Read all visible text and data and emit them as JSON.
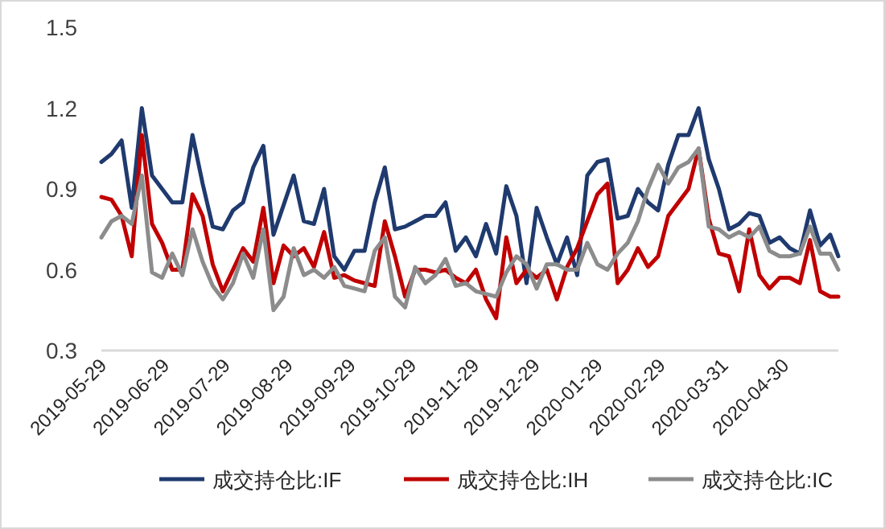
{
  "chart_data": {
    "type": "line",
    "legend": "bottom",
    "line_style": "solid",
    "x": [
      "2019-05-29",
      "2019-06-03",
      "2019-06-08",
      "2019-06-13",
      "2019-06-18",
      "2019-06-23",
      "2019-06-28",
      "2019-07-03",
      "2019-07-08",
      "2019-07-13",
      "2019-07-18",
      "2019-07-23",
      "2019-07-28",
      "2019-08-02",
      "2019-08-07",
      "2019-08-12",
      "2019-08-17",
      "2019-08-22",
      "2019-08-27",
      "2019-09-01",
      "2019-09-06",
      "2019-09-11",
      "2019-09-16",
      "2019-09-21",
      "2019-09-26",
      "2019-10-01",
      "2019-10-06",
      "2019-10-11",
      "2019-10-16",
      "2019-10-21",
      "2019-10-26",
      "2019-10-31",
      "2019-11-05",
      "2019-11-10",
      "2019-11-15",
      "2019-11-20",
      "2019-11-25",
      "2019-11-30",
      "2019-12-05",
      "2019-12-10",
      "2019-12-15",
      "2019-12-20",
      "2019-12-25",
      "2019-12-30",
      "2020-01-04",
      "2020-01-09",
      "2020-01-14",
      "2020-01-19",
      "2020-01-24",
      "2020-01-29",
      "2020-02-03",
      "2020-02-08",
      "2020-02-13",
      "2020-02-18",
      "2020-02-23",
      "2020-02-28",
      "2020-03-04",
      "2020-03-09",
      "2020-03-14",
      "2020-03-19",
      "2020-03-24",
      "2020-03-29",
      "2020-04-03",
      "2020-04-08",
      "2020-04-13",
      "2020-04-18",
      "2020-04-23",
      "2020-04-28",
      "2020-05-03",
      "2020-05-08",
      "2020-05-13",
      "2020-05-18",
      "2020-05-23",
      "2020-05-27"
    ],
    "series": [
      {
        "name": "成交持仓比:IF",
        "color": "#1f3a6e",
        "values": [
          1.0,
          1.03,
          1.08,
          0.83,
          1.2,
          0.95,
          0.9,
          0.85,
          0.85,
          1.1,
          0.92,
          0.76,
          0.75,
          0.82,
          0.85,
          0.98,
          1.06,
          0.73,
          0.84,
          0.95,
          0.78,
          0.77,
          0.9,
          0.65,
          0.6,
          0.67,
          0.67,
          0.85,
          0.98,
          0.75,
          0.76,
          0.78,
          0.8,
          0.8,
          0.85,
          0.67,
          0.72,
          0.65,
          0.77,
          0.66,
          0.91,
          0.8,
          0.55,
          0.83,
          0.72,
          0.62,
          0.72,
          0.58,
          0.95,
          1.0,
          1.01,
          0.79,
          0.8,
          0.9,
          0.85,
          0.82,
          0.99,
          1.1,
          1.1,
          1.2,
          1.01,
          0.9,
          0.75,
          0.77,
          0.81,
          0.8,
          0.7,
          0.72,
          0.68,
          0.66,
          0.82,
          0.69,
          0.73,
          0.65
        ]
      },
      {
        "name": "成交持仓比:IH",
        "color": "#c00000",
        "values": [
          0.87,
          0.86,
          0.8,
          0.65,
          1.1,
          0.77,
          0.7,
          0.6,
          0.6,
          0.88,
          0.8,
          0.62,
          0.52,
          0.6,
          0.68,
          0.63,
          0.83,
          0.55,
          0.69,
          0.65,
          0.68,
          0.61,
          0.74,
          0.57,
          0.58,
          0.56,
          0.55,
          0.54,
          0.78,
          0.65,
          0.5,
          0.6,
          0.6,
          0.59,
          0.6,
          0.57,
          0.55,
          0.6,
          0.49,
          0.42,
          0.72,
          0.55,
          0.6,
          0.57,
          0.6,
          0.49,
          0.61,
          0.68,
          0.78,
          0.88,
          0.92,
          0.55,
          0.6,
          0.68,
          0.61,
          0.65,
          0.8,
          0.85,
          0.9,
          1.05,
          0.79,
          0.66,
          0.65,
          0.52,
          0.75,
          0.58,
          0.53,
          0.57,
          0.57,
          0.55,
          0.71,
          0.52,
          0.5,
          0.5
        ]
      },
      {
        "name": "成交持仓比:IC",
        "color": "#8c8c8c",
        "values": [
          0.72,
          0.78,
          0.8,
          0.77,
          0.95,
          0.59,
          0.57,
          0.66,
          0.58,
          0.75,
          0.63,
          0.54,
          0.49,
          0.55,
          0.66,
          0.57,
          0.75,
          0.45,
          0.5,
          0.68,
          0.58,
          0.6,
          0.57,
          0.61,
          0.54,
          0.53,
          0.52,
          0.67,
          0.72,
          0.5,
          0.46,
          0.61,
          0.55,
          0.58,
          0.64,
          0.54,
          0.55,
          0.52,
          0.51,
          0.5,
          0.59,
          0.65,
          0.62,
          0.53,
          0.62,
          0.62,
          0.6,
          0.6,
          0.7,
          0.62,
          0.6,
          0.66,
          0.7,
          0.78,
          0.9,
          0.99,
          0.92,
          0.98,
          1.0,
          1.05,
          0.76,
          0.75,
          0.72,
          0.74,
          0.72,
          0.76,
          0.67,
          0.65,
          0.65,
          0.66,
          0.76,
          0.66,
          0.66,
          0.6
        ]
      }
    ],
    "xlim": [
      "2019-05-29",
      "2020-05-27"
    ],
    "xticks": [
      "2019-05-29",
      "2019-06-29",
      "2019-07-29",
      "2019-08-29",
      "2019-09-29",
      "2019-10-29",
      "2019-11-29",
      "2019-12-29",
      "2020-01-29",
      "2020-02-29",
      "2020-03-31",
      "2020-04-30"
    ],
    "ylim": [
      0.3,
      1.5
    ],
    "yticks": [
      0.3,
      0.6,
      0.9,
      1.2,
      1.5
    ]
  }
}
